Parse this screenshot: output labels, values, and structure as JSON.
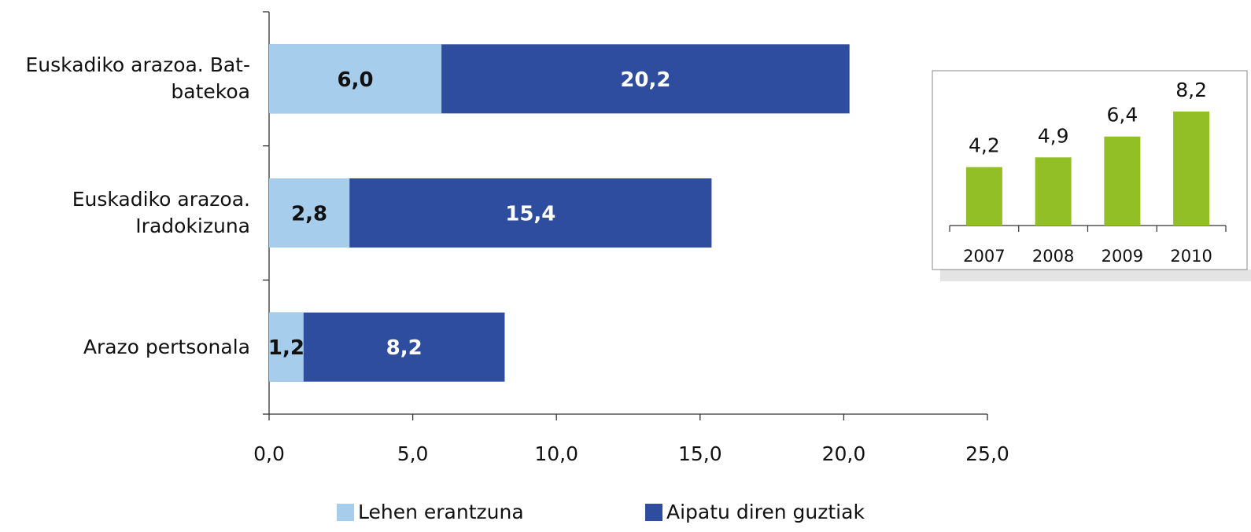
{
  "chart_data": [
    {
      "type": "bar",
      "orientation": "horizontal",
      "categories": [
        "Euskadiko arazoa. Bat-\nbatekoa",
        "Euskadiko arazoa.\nIradokizuna",
        "Arazo pertsonala"
      ],
      "series": [
        {
          "name": "Lehen erantzuna",
          "color": "#a6cdec",
          "values": [
            6.0,
            2.8,
            1.2
          ],
          "value_labels": [
            "6,0",
            "2,8",
            "1,2"
          ]
        },
        {
          "name": "Aipatu diren guztiak",
          "color": "#2e4d9e",
          "values": [
            20.2,
            15.4,
            8.2
          ],
          "value_labels": [
            "20,2",
            "15,4",
            "8,2"
          ]
        }
      ],
      "xlim": [
        0,
        25
      ],
      "xticks": [
        {
          "value": 0,
          "label": "0,0"
        },
        {
          "value": 5,
          "label": "5,0"
        },
        {
          "value": 10,
          "label": "10,0"
        },
        {
          "value": 15,
          "label": "15,0"
        },
        {
          "value": 20,
          "label": "20,0"
        },
        {
          "value": 25,
          "label": "25,0"
        }
      ]
    },
    {
      "type": "bar",
      "categories": [
        "2007",
        "2008",
        "2009",
        "2010"
      ],
      "values": [
        4.2,
        4.9,
        6.4,
        8.2
      ],
      "value_labels": [
        "4,2",
        "4,9",
        "6,4",
        "8,2"
      ],
      "color": "#93bf26",
      "ylim": [
        0,
        10
      ]
    }
  ]
}
